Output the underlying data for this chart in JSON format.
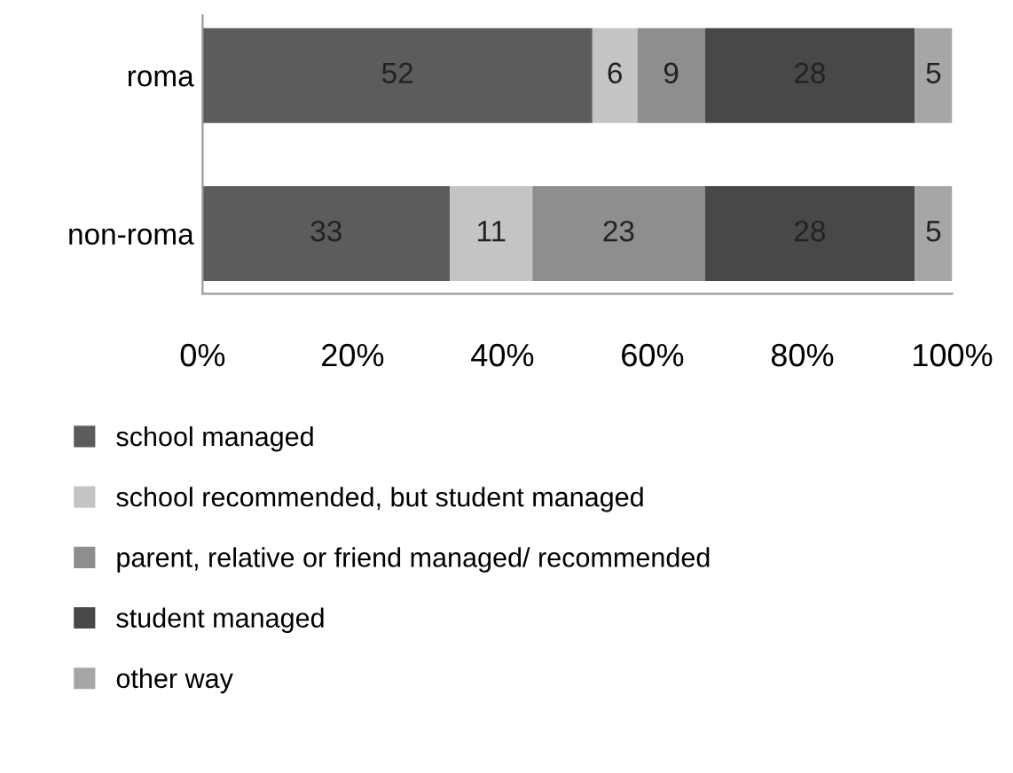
{
  "chart_data": {
    "type": "bar",
    "orientation": "horizontal",
    "stacked": true,
    "data_labels": true,
    "categories": [
      "roma",
      "non-roma"
    ],
    "series": [
      {
        "name": "school managed",
        "color": "#5c5c5c",
        "values": [
          52,
          33
        ]
      },
      {
        "name": "school recommended, but student managed",
        "color": "#c4c4c4",
        "values": [
          6,
          11
        ]
      },
      {
        "name": "parent, relative or friend managed/ recommended",
        "color": "#8e8e8e",
        "values": [
          9,
          23
        ]
      },
      {
        "name": "student managed",
        "color": "#484848",
        "values": [
          28,
          28
        ]
      },
      {
        "name": "other way",
        "color": "#a6a6a6",
        "values": [
          5,
          5
        ]
      }
    ],
    "xlim": [
      0,
      100
    ],
    "xticks": [
      {
        "value": 0,
        "label": "0%"
      },
      {
        "value": 20,
        "label": "20%"
      },
      {
        "value": 40,
        "label": "40%"
      },
      {
        "value": 60,
        "label": "60%"
      },
      {
        "value": 80,
        "label": "80%"
      },
      {
        "value": 100,
        "label": "100%"
      }
    ],
    "grid": false,
    "legend": "bottom"
  }
}
